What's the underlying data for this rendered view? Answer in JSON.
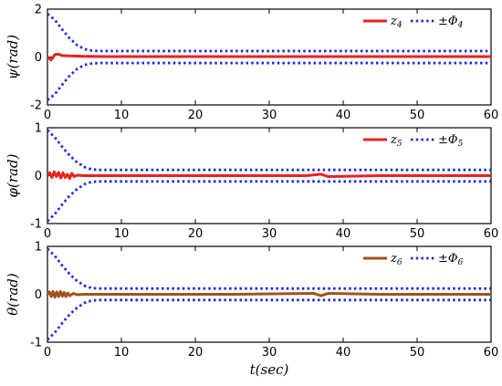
{
  "chart_data": [
    {
      "type": "line",
      "ylabel": "ψ(rad)",
      "xlabel": "",
      "xlim": [
        0,
        60
      ],
      "ylim": [
        -2,
        2
      ],
      "x_ticks": [
        0,
        10,
        20,
        30,
        40,
        50,
        60
      ],
      "y_ticks": [
        -2,
        0,
        2
      ],
      "legend_position": "top-right",
      "series": [
        {
          "name": "z4",
          "label_base": "z",
          "label_sub": "4",
          "color": "#e8231f",
          "style": "solid",
          "x": [
            0,
            0.5,
            1,
            1.5,
            2,
            3,
            5,
            8,
            15,
            25,
            35,
            45,
            55,
            60
          ],
          "y": [
            0,
            -0.12,
            0.1,
            0.12,
            0.06,
            0.05,
            0.03,
            0.02,
            0.02,
            0.02,
            0.02,
            0.02,
            0.02,
            0.02
          ]
        },
        {
          "name": "±Φ4",
          "label_base": "±Φ",
          "label_sub": "4",
          "color": "#1f2ad6",
          "style": "dotted",
          "mirror": true,
          "x": [
            0,
            1,
            2,
            3,
            4,
            5,
            6,
            7,
            10,
            20,
            30,
            40,
            50,
            60
          ],
          "y": [
            1.8,
            1.55,
            1.15,
            0.78,
            0.5,
            0.33,
            0.27,
            0.25,
            0.25,
            0.25,
            0.25,
            0.25,
            0.25,
            0.25
          ]
        }
      ]
    },
    {
      "type": "line",
      "ylabel": "φ(rad)",
      "xlabel": "",
      "xlim": [
        0,
        60
      ],
      "ylim": [
        -1,
        1
      ],
      "x_ticks": [
        0,
        10,
        20,
        30,
        40,
        50,
        60
      ],
      "y_ticks": [
        -1,
        0,
        1
      ],
      "legend_position": "top-right",
      "series": [
        {
          "name": "z5",
          "label_base": "z",
          "label_sub": "5",
          "color": "#e8231f",
          "style": "solid",
          "x": [
            0,
            0.3,
            0.6,
            0.9,
            1.2,
            1.5,
            1.8,
            2.1,
            2.4,
            2.7,
            3,
            3.3,
            3.6,
            4,
            5,
            8,
            15,
            25,
            35,
            37,
            38,
            45,
            55,
            60
          ],
          "y": [
            0,
            0.06,
            -0.04,
            0.08,
            -0.02,
            0.07,
            -0.05,
            0.06,
            -0.04,
            0.03,
            -0.06,
            0.05,
            -0.02,
            0.01,
            0,
            0,
            0,
            0,
            0,
            0.03,
            -0.02,
            0,
            0,
            0
          ]
        },
        {
          "name": "±Φ5",
          "label_base": "±Φ",
          "label_sub": "5",
          "color": "#1f2ad6",
          "style": "dotted",
          "mirror": true,
          "x": [
            0,
            1,
            2,
            3,
            4,
            5,
            6,
            7,
            10,
            20,
            30,
            40,
            50,
            60
          ],
          "y": [
            0.95,
            0.8,
            0.6,
            0.42,
            0.28,
            0.18,
            0.13,
            0.12,
            0.12,
            0.12,
            0.12,
            0.12,
            0.12,
            0.12
          ]
        }
      ]
    },
    {
      "type": "line",
      "ylabel": "θ(rad)",
      "xlabel": "t(sec)",
      "xlim": [
        0,
        60
      ],
      "ylim": [
        -1,
        1
      ],
      "x_ticks": [
        0,
        10,
        20,
        30,
        40,
        50,
        60
      ],
      "y_ticks": [
        -1,
        0,
        1
      ],
      "legend_position": "top-right",
      "series": [
        {
          "name": "z6",
          "label_base": "z",
          "label_sub": "6",
          "color": "#a0521d",
          "style": "solid",
          "x": [
            0,
            0.25,
            0.5,
            0.75,
            1,
            1.25,
            1.5,
            1.75,
            2,
            2.25,
            2.5,
            2.75,
            3,
            3.5,
            4,
            5,
            8,
            15,
            25,
            36,
            37,
            38,
            45,
            55,
            60
          ],
          "y": [
            0,
            0.05,
            -0.05,
            0.06,
            -0.06,
            0.05,
            -0.05,
            0.06,
            -0.04,
            0.04,
            -0.05,
            0.03,
            -0.03,
            0.02,
            -0.01,
            0,
            0,
            0,
            0,
            0.02,
            -0.03,
            0.02,
            0,
            0,
            0
          ]
        },
        {
          "name": "±Φ6",
          "label_base": "±Φ",
          "label_sub": "6",
          "color": "#1f2ad6",
          "style": "dotted",
          "mirror": true,
          "x": [
            0,
            1,
            2,
            3,
            4,
            5,
            6,
            7,
            10,
            20,
            30,
            40,
            50,
            60
          ],
          "y": [
            0.95,
            0.8,
            0.6,
            0.42,
            0.28,
            0.18,
            0.13,
            0.12,
            0.12,
            0.12,
            0.12,
            0.12,
            0.12,
            0.12
          ]
        }
      ]
    }
  ]
}
